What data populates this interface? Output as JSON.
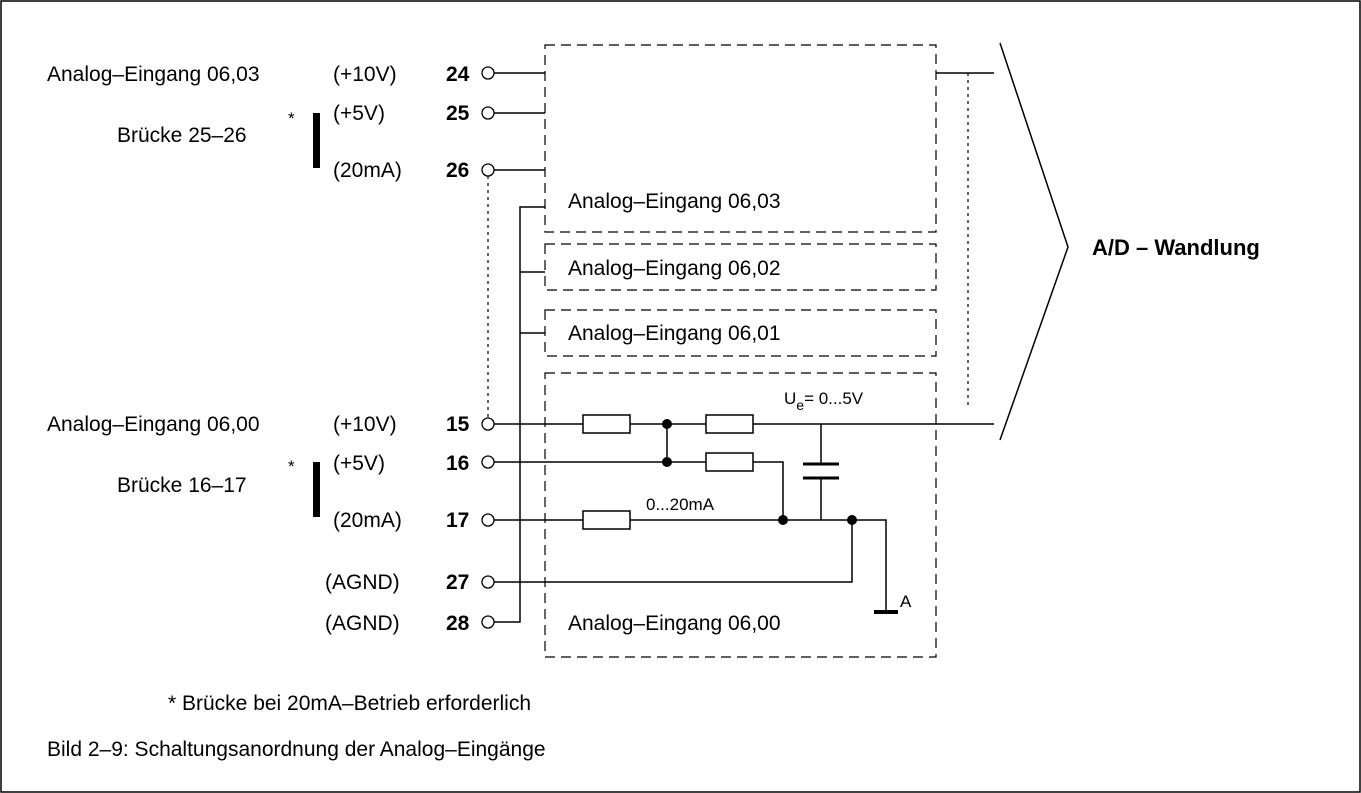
{
  "inputs": {
    "in_0603": "Analog–Eingang 06,03",
    "in_0600": "Analog–Eingang 06,00"
  },
  "modes": {
    "v10": "(+10V)",
    "v5": "(+5V)",
    "ma20": "(20mA)",
    "agnd": "(AGND)"
  },
  "pins": {
    "p24": "24",
    "p25": "25",
    "p26": "26",
    "p15": "15",
    "p16": "16",
    "p17": "17",
    "p27": "27",
    "p28": "28"
  },
  "bridges": {
    "b2526": "Brücke 25–26",
    "b1617": "Brücke 16–17",
    "star": "*"
  },
  "modules": {
    "m0603": "Analog–Eingang 06,03",
    "m0602": "Analog–Eingang 06,02",
    "m0601": "Analog–Eingang 06,01",
    "m0600": "Analog–Eingang 06,00"
  },
  "circuit": {
    "ue_u": "U",
    "ue_sub": "e",
    "ue_range": "= 0...5V",
    "current_range": "0...20mA",
    "ground_label": "A"
  },
  "adc": "A/D – Wandlung",
  "footnote": "*  Brücke bei 20mA–Betrieb erforderlich",
  "caption": "Bild 2–9:  Schaltungsanordnung der Analog–Eingänge"
}
